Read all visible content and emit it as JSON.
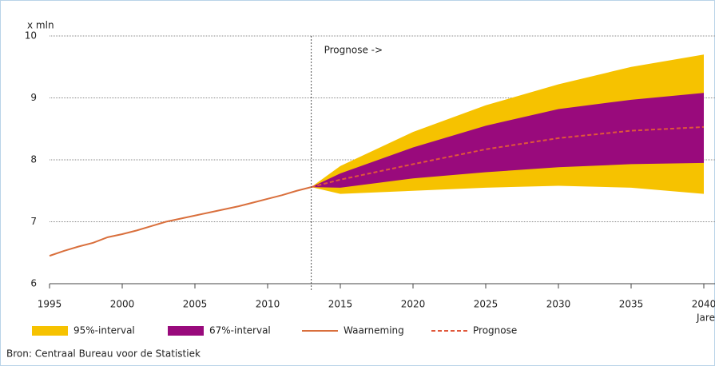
{
  "chart_data": {
    "type": "fan",
    "y_label": "x mln",
    "x_label": "Jaren",
    "annotation": "Prognose ->",
    "forecast_start": 2013,
    "source": "Bron: Centraal Bureau voor de Statistiek",
    "xlim": [
      1995,
      2040
    ],
    "xticks": [
      1995,
      2000,
      2005,
      2010,
      2015,
      2020,
      2025,
      2030,
      2035,
      2040
    ],
    "ylim": [
      6,
      10
    ],
    "yticks": [
      6,
      7,
      8,
      9,
      10
    ],
    "grid": true,
    "series": [
      {
        "name": "95%-interval",
        "kind": "band",
        "color": "#f6c200",
        "x": [
          2013,
          2015,
          2020,
          2025,
          2030,
          2035,
          2040
        ],
        "upper": [
          7.56,
          7.9,
          8.45,
          8.88,
          9.22,
          9.5,
          9.7
        ],
        "lower": [
          7.56,
          7.45,
          7.5,
          7.55,
          7.58,
          7.55,
          7.45
        ]
      },
      {
        "name": "67%-interval",
        "kind": "band",
        "color": "#990a7c",
        "x": [
          2013,
          2015,
          2020,
          2025,
          2030,
          2035,
          2040
        ],
        "upper": [
          7.56,
          7.78,
          8.2,
          8.55,
          8.82,
          8.97,
          9.08
        ],
        "lower": [
          7.56,
          7.55,
          7.7,
          7.8,
          7.88,
          7.93,
          7.95
        ]
      },
      {
        "name": "Waarneming",
        "kind": "line",
        "style": "solid",
        "color": "#d96f3c",
        "x": [
          1995,
          1996,
          1997,
          1998,
          1999,
          2000,
          2001,
          2002,
          2003,
          2004,
          2005,
          2006,
          2007,
          2008,
          2009,
          2010,
          2011,
          2012,
          2013
        ],
        "values": [
          6.45,
          6.53,
          6.6,
          6.66,
          6.75,
          6.8,
          6.86,
          6.93,
          7.0,
          7.05,
          7.1,
          7.15,
          7.2,
          7.25,
          7.31,
          7.37,
          7.43,
          7.5,
          7.56
        ]
      },
      {
        "name": "Prognose",
        "kind": "line",
        "style": "dashed",
        "color": "#e0573a",
        "x": [
          2013,
          2015,
          2020,
          2025,
          2030,
          2035,
          2040
        ],
        "values": [
          7.56,
          7.68,
          7.93,
          8.17,
          8.35,
          8.47,
          8.53
        ]
      }
    ]
  }
}
